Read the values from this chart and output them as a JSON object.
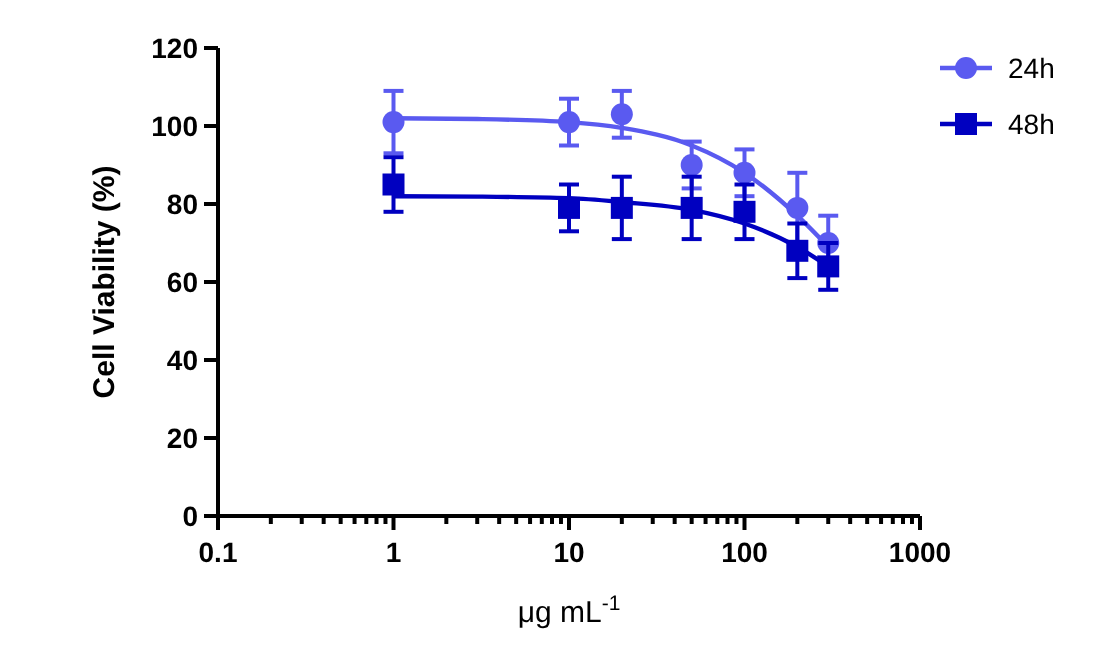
{
  "chart_data": {
    "type": "scatter",
    "xlabel": "μg mL$^{-1}$",
    "ylabel": "Cell Viability (%)",
    "log": "x",
    "xlim": [
      0.1,
      1000
    ],
    "ylim": [
      0,
      120
    ],
    "xticks": [
      0.1,
      {
        "value": 0.2,
        "label": null
      },
      {
        "value": 0.3,
        "label": null
      },
      {
        "value": 0.4,
        "label": null
      },
      {
        "value": 0.5,
        "label": null
      },
      {
        "value": 0.6,
        "label": null
      },
      {
        "value": 0.7,
        "label": null
      },
      {
        "value": 0.8,
        "label": null
      },
      {
        "value": 0.9,
        "label": null
      },
      1,
      {
        "value": 2,
        "label": null
      },
      {
        "value": 3,
        "label": null
      },
      {
        "value": 4,
        "label": null
      },
      {
        "value": 5,
        "label": null
      },
      {
        "value": 6,
        "label": null
      },
      {
        "value": 7,
        "label": null
      },
      {
        "value": 8,
        "label": null
      },
      {
        "value": 9,
        "label": null
      },
      10,
      {
        "value": 20,
        "label": null
      },
      {
        "value": 30,
        "label": null
      },
      {
        "value": 40,
        "label": null
      },
      {
        "value": 50,
        "label": null
      },
      {
        "value": 60,
        "label": null
      },
      {
        "value": 70,
        "label": null
      },
      {
        "value": 80,
        "label": null
      },
      {
        "value": 90,
        "label": null
      },
      100,
      {
        "value": 200,
        "label": null
      },
      {
        "value": 300,
        "label": null
      },
      {
        "value": 400,
        "label": null
      },
      {
        "value": 500,
        "label": null
      },
      {
        "value": 600,
        "label": null
      },
      {
        "value": 700,
        "label": null
      },
      {
        "value": 800,
        "label": null
      },
      {
        "value": 900,
        "label": null
      },
      1000
    ],
    "yticks": [
      0,
      20,
      40,
      60,
      80,
      100,
      120
    ],
    "grid": false,
    "legend": "top right",
    "series": [
      {
        "name": "24h",
        "marker": "circle",
        "color": "#5a5af0",
        "x": [
          1,
          10,
          20,
          50,
          100,
          200,
          300
        ],
        "values": [
          101,
          101,
          103,
          90,
          88,
          79,
          70
        ],
        "errors": [
          8,
          6,
          6,
          6,
          6,
          9,
          7
        ]
      },
      {
        "name": "48h",
        "marker": "square",
        "color": "#0000c0",
        "x": [
          1,
          10,
          20,
          50,
          100,
          200,
          300
        ],
        "values": [
          85,
          79,
          79,
          79,
          78,
          68,
          64
        ],
        "errors": [
          7,
          6,
          8,
          8,
          7,
          7,
          6
        ]
      },
      {
        "type": "line",
        "color": "#5a5af0",
        "x": [
          1,
          3,
          10,
          20,
          50,
          100,
          200,
          300
        ],
        "values": [
          102,
          101.8,
          101,
          99.5,
          95,
          88,
          77,
          69
        ]
      },
      {
        "type": "line",
        "color": "#0000c0",
        "x": [
          1,
          3,
          10,
          20,
          50,
          100,
          200,
          300
        ],
        "values": [
          82,
          81.9,
          81.5,
          80.5,
          78.5,
          75,
          69,
          64
        ]
      }
    ]
  }
}
